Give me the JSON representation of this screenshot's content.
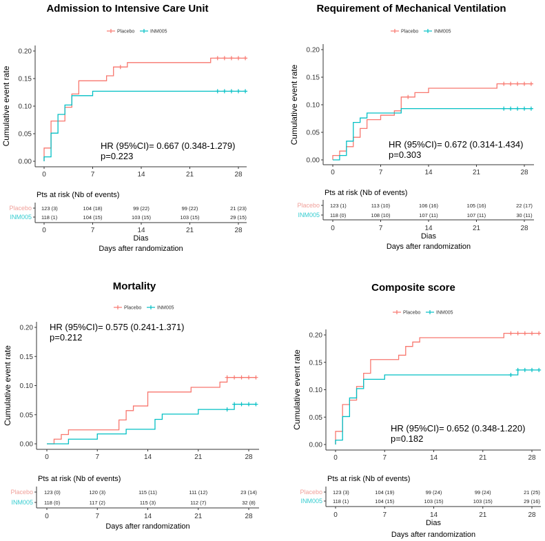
{
  "colors": {
    "placebo": "#F8766D",
    "inm005": "#00BFC4",
    "placebo_label": "#F0A09A",
    "inm005_label": "#33CCD0"
  },
  "chart_data": [
    {
      "type": "line",
      "title": "Admission to Intensive Care Unit",
      "ylabel": "Cumulative event rate",
      "xlabel": "Days after randomization",
      "xticks": [
        0,
        7,
        14,
        21,
        28
      ],
      "yticks": [
        "0.00",
        "0.05",
        "0.10",
        "0.15",
        "0.20"
      ],
      "ylim": [
        0,
        0.2
      ],
      "xlim": [
        0,
        29
      ],
      "legend": {
        "placement": "top",
        "entries": [
          "Placebo",
          "INM005"
        ]
      },
      "hr_text": "HR (95%CI)= 0.667 (0.348-1.279)",
      "p_text": "p=0.223",
      "series": [
        {
          "name": "Placebo",
          "steps": [
            [
              0,
              0.024
            ],
            [
              1,
              0.073
            ],
            [
              3,
              0.098
            ],
            [
              4,
              0.122
            ],
            [
              5,
              0.146
            ],
            [
              9,
              0.155
            ],
            [
              10,
              0.171
            ],
            [
              12,
              0.179
            ],
            [
              24,
              0.187
            ]
          ],
          "end": 29,
          "censored": [
            [
              11,
              0.171
            ],
            [
              25,
              0.187
            ],
            [
              26,
              0.187
            ],
            [
              27,
              0.187
            ],
            [
              28,
              0.187
            ],
            [
              29,
              0.187
            ]
          ]
        },
        {
          "name": "INM005",
          "steps": [
            [
              0,
              0.008
            ],
            [
              1,
              0.051
            ],
            [
              2,
              0.085
            ],
            [
              3,
              0.102
            ],
            [
              4,
              0.119
            ],
            [
              7,
              0.127
            ]
          ],
          "end": 29,
          "censored": [
            [
              25,
              0.127
            ],
            [
              26,
              0.127
            ],
            [
              27,
              0.127
            ],
            [
              28,
              0.127
            ],
            [
              29,
              0.127
            ]
          ]
        }
      ],
      "risk_table": {
        "title": "Pts at risk (Nb of events)",
        "xlabel": "Dias",
        "rows": [
          {
            "label": "Placebo",
            "values": [
              "123 (3)",
              "104 (18)",
              "99 (22)",
              "99 (22)",
              "21 (23)"
            ]
          },
          {
            "label": "INM005",
            "values": [
              "118 (1)",
              "104 (15)",
              "103 (15)",
              "103 (15)",
              "29 (15)"
            ]
          }
        ]
      }
    },
    {
      "type": "line",
      "title": "Requirement of Mechanical Ventilation",
      "ylabel": "Cumulative event rate",
      "xlabel": "Days after randomization",
      "xticks": [
        0,
        7,
        14,
        21,
        28
      ],
      "yticks": [
        "0.00",
        "0.05",
        "0.10",
        "0.15",
        "0.20"
      ],
      "ylim": [
        0,
        0.2
      ],
      "xlim": [
        0,
        29
      ],
      "legend": {
        "placement": "top",
        "entries": [
          "Placebo",
          "INM005"
        ]
      },
      "hr_text": "HR (95%CI)= 0.672 (0.314-1.434)",
      "p_text": "p=0.303",
      "series": [
        {
          "name": "Placebo",
          "steps": [
            [
              0,
              0.008
            ],
            [
              1,
              0.016
            ],
            [
              2,
              0.024
            ],
            [
              3,
              0.041
            ],
            [
              4,
              0.057
            ],
            [
              5,
              0.073
            ],
            [
              7,
              0.081
            ],
            [
              9,
              0.089
            ],
            [
              10,
              0.114
            ],
            [
              12,
              0.122
            ],
            [
              14,
              0.13
            ],
            [
              24,
              0.138
            ]
          ],
          "end": 29,
          "censored": [
            [
              11,
              0.114
            ],
            [
              25,
              0.138
            ],
            [
              26,
              0.138
            ],
            [
              27,
              0.138
            ],
            [
              28,
              0.138
            ],
            [
              29,
              0.138
            ]
          ]
        },
        {
          "name": "INM005",
          "steps": [
            [
              0,
              0
            ],
            [
              1,
              0.008
            ],
            [
              2,
              0.034
            ],
            [
              3,
              0.068
            ],
            [
              4,
              0.076
            ],
            [
              5,
              0.085
            ],
            [
              10,
              0.093
            ]
          ],
          "end": 29,
          "censored": [
            [
              25,
              0.093
            ],
            [
              26,
              0.093
            ],
            [
              27,
              0.093
            ],
            [
              28,
              0.093
            ],
            [
              29,
              0.093
            ]
          ]
        }
      ],
      "risk_table": {
        "title": "Pts at risk (Nb of events)",
        "xlabel": "Dias",
        "rows": [
          {
            "label": "Placebo",
            "values": [
              "123 (1)",
              "113 (10)",
              "106 (16)",
              "105 (16)",
              "22 (17)"
            ]
          },
          {
            "label": "INM005",
            "values": [
              "118 (0)",
              "108 (10)",
              "107 (11)",
              "107 (11)",
              "30 (11)"
            ]
          }
        ]
      }
    },
    {
      "type": "line",
      "title": "Mortality",
      "ylabel": "Cumulative event rate",
      "xlabel": "Days after randomization",
      "xticks": [
        0,
        7,
        14,
        21,
        28
      ],
      "yticks": [
        "0.00",
        "0.05",
        "0.10",
        "0.15",
        "0.20"
      ],
      "ylim": [
        0,
        0.2
      ],
      "xlim": [
        0,
        29
      ],
      "legend": {
        "placement": "top",
        "entries": [
          "Placebo",
          "INM005"
        ]
      },
      "hr_text": "HR (95%CI)= 0.575 (0.241-1.371)",
      "p_text": "p=0.212",
      "series": [
        {
          "name": "Placebo",
          "steps": [
            [
              0,
              0
            ],
            [
              1,
              0.008
            ],
            [
              2,
              0.016
            ],
            [
              3,
              0.024
            ],
            [
              10,
              0.041
            ],
            [
              11,
              0.057
            ],
            [
              12,
              0.065
            ],
            [
              14,
              0.089
            ],
            [
              20,
              0.097
            ],
            [
              24,
              0.106
            ],
            [
              25,
              0.114
            ]
          ],
          "end": 29,
          "censored": [
            [
              25,
              0.114
            ],
            [
              26,
              0.114
            ],
            [
              27,
              0.114
            ],
            [
              28,
              0.114
            ],
            [
              29,
              0.114
            ]
          ]
        },
        {
          "name": "INM005",
          "steps": [
            [
              0,
              0
            ],
            [
              3,
              0.008
            ],
            [
              7,
              0.017
            ],
            [
              11,
              0.025
            ],
            [
              15,
              0.042
            ],
            [
              16,
              0.051
            ],
            [
              21,
              0.059
            ],
            [
              26,
              0.068
            ]
          ],
          "end": 29,
          "censored": [
            [
              25,
              0.059
            ],
            [
              26,
              0.068
            ],
            [
              27,
              0.068
            ],
            [
              28,
              0.068
            ],
            [
              29,
              0.068
            ]
          ]
        }
      ],
      "risk_table": {
        "title": "Pts at risk (Nb of events)",
        "xlabel": "",
        "rows": [
          {
            "label": "Placebo",
            "values": [
              "123 (0)",
              "120 (3)",
              "115 (11)",
              "111 (12)",
              "23 (14)"
            ]
          },
          {
            "label": "INM005",
            "values": [
              "118 (0)",
              "117 (2)",
              "115 (3)",
              "112 (7)",
              "32 (8)"
            ]
          }
        ]
      }
    },
    {
      "type": "line",
      "title": "Composite score",
      "ylabel": "Cumulative event rate",
      "xlabel": "Days after randomization",
      "xticks": [
        0,
        7,
        14,
        21,
        28
      ],
      "yticks": [
        "0.00",
        "0.05",
        "0.10",
        "0.15",
        "0.20"
      ],
      "ylim": [
        0,
        0.2
      ],
      "xlim": [
        0,
        29
      ],
      "legend": {
        "placement": "top",
        "entries": [
          "Placebo",
          "INM005"
        ]
      },
      "hr_text": "HR (95%CI)=  0.652 (0.348-1.220)",
      "p_text": "p=0.182",
      "series": [
        {
          "name": "Placebo",
          "steps": [
            [
              0,
              0.024
            ],
            [
              1,
              0.073
            ],
            [
              2,
              0.081
            ],
            [
              3,
              0.106
            ],
            [
              4,
              0.13
            ],
            [
              5,
              0.155
            ],
            [
              9,
              0.163
            ],
            [
              10,
              0.179
            ],
            [
              11,
              0.187
            ],
            [
              12,
              0.195
            ],
            [
              24,
              0.203
            ]
          ],
          "end": 29,
          "censored": [
            [
              25,
              0.203
            ],
            [
              26,
              0.203
            ],
            [
              27,
              0.203
            ],
            [
              28,
              0.203
            ],
            [
              29,
              0.203
            ]
          ]
        },
        {
          "name": "INM005",
          "steps": [
            [
              0,
              0.008
            ],
            [
              1,
              0.051
            ],
            [
              2,
              0.085
            ],
            [
              3,
              0.102
            ],
            [
              4,
              0.119
            ],
            [
              7,
              0.127
            ],
            [
              26,
              0.136
            ]
          ],
          "end": 29,
          "censored": [
            [
              25,
              0.127
            ],
            [
              26,
              0.136
            ],
            [
              27,
              0.136
            ],
            [
              28,
              0.136
            ],
            [
              29,
              0.136
            ]
          ]
        }
      ],
      "risk_table": {
        "title": "Pts at risk (Nb of events)",
        "xlabel": "Dias",
        "rows": [
          {
            "label": "Placebo",
            "values": [
              "123 (3)",
              "104 (19)",
              "99 (24)",
              "99 (24)",
              "21 (25)"
            ]
          },
          {
            "label": "INM005",
            "values": [
              "118 (1)",
              "104 (15)",
              "103 (15)",
              "103 (15)",
              "29 (16)"
            ]
          }
        ]
      }
    }
  ]
}
